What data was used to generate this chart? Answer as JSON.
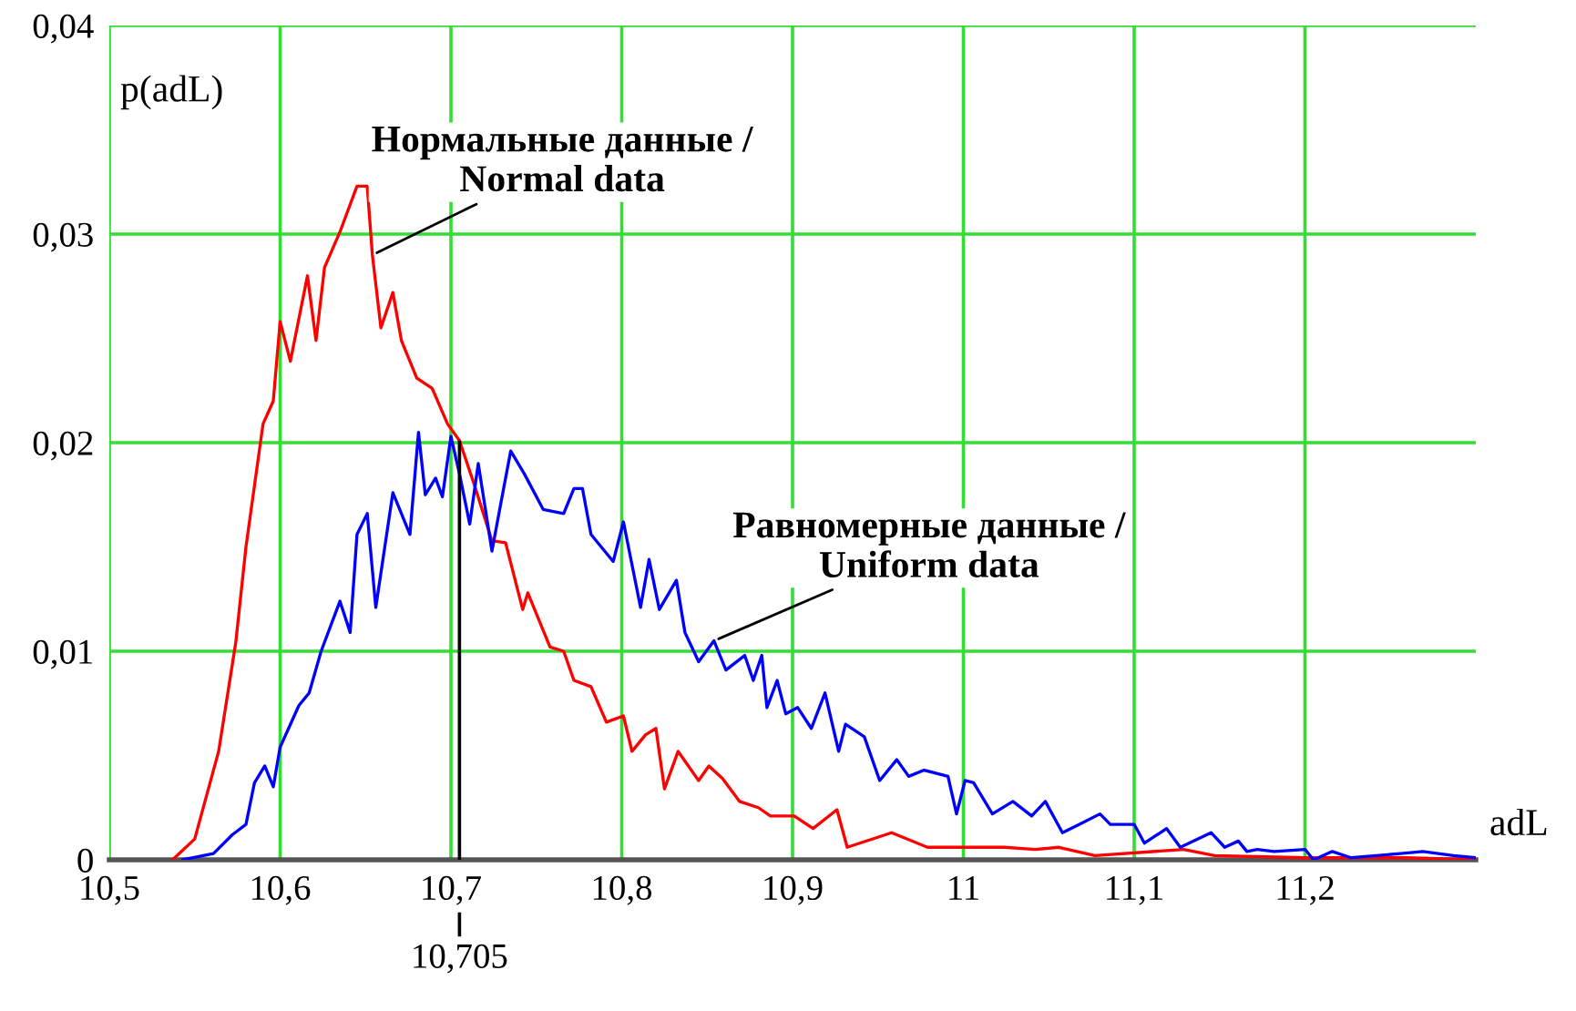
{
  "chart_data": {
    "type": "line",
    "xlabel": "adL",
    "ylabel": "p(adL)",
    "xlim": [
      10.5,
      11.3
    ],
    "ylim": [
      0,
      0.04
    ],
    "xticks": [
      {
        "value": 10.5,
        "label": "10,5"
      },
      {
        "value": 10.6,
        "label": "10,6"
      },
      {
        "value": 10.7,
        "label": "10,7"
      },
      {
        "value": 10.8,
        "label": "10,8"
      },
      {
        "value": 10.9,
        "label": "10,9"
      },
      {
        "value": 11,
        "label": "11"
      },
      {
        "value": 11.1,
        "label": "11,1"
      },
      {
        "value": 11.2,
        "label": "11,2"
      }
    ],
    "yticks": [
      0,
      {
        "value": 0.01,
        "label": "0,01"
      },
      {
        "value": 0.02,
        "label": "0,02"
      },
      {
        "value": 0.03,
        "label": "0,03"
      },
      {
        "value": 0.04,
        "label": "0,04"
      }
    ],
    "grid": true,
    "legend": false,
    "marker": "none",
    "line_style": "solid",
    "ref_lines": [
      {
        "axis": "x",
        "value": 10.705,
        "label": "10,705",
        "color": "#000000"
      }
    ],
    "annotations": [
      {
        "text": "Нормальные данные /\nNormal data",
        "x": 10.654,
        "y": 0.029
      },
      {
        "text": "Равномерные данные /\nUniform data",
        "x": 10.854,
        "y": 0.0105
      }
    ],
    "series": [
      {
        "color": "#ff0000",
        "x": [
          10.537,
          10.55,
          10.564,
          10.574,
          10.58,
          10.59,
          10.596,
          10.6,
          10.606,
          10.616,
          10.621,
          10.626,
          10.635,
          10.645,
          10.651,
          10.654,
          10.659,
          10.666,
          10.671,
          10.68,
          10.689,
          10.698,
          10.705,
          10.714,
          10.724,
          10.732,
          10.742,
          10.745,
          10.758,
          10.766,
          10.772,
          10.782,
          10.791,
          10.801,
          10.806,
          10.814,
          10.82,
          10.825,
          10.833,
          10.845,
          10.851,
          10.859,
          10.869,
          10.88,
          10.887,
          10.901,
          10.912,
          10.926,
          10.932,
          10.958,
          10.979,
          11.024,
          11.042,
          11.056,
          11.077,
          11.129,
          11.147,
          11.2,
          11.259,
          11.3
        ],
        "values": [
          0,
          0.001,
          0.0052,
          0.0104,
          0.015,
          0.0209,
          0.022,
          0.0258,
          0.0239,
          0.028,
          0.0249,
          0.0284,
          0.0301,
          0.0323,
          0.0323,
          0.029,
          0.0255,
          0.0272,
          0.0249,
          0.0231,
          0.0226,
          0.0209,
          0.0201,
          0.0179,
          0.0153,
          0.0152,
          0.012,
          0.0128,
          0.0102,
          0.01,
          0.0086,
          0.0083,
          0.0066,
          0.0069,
          0.0052,
          0.006,
          0.0063,
          0.0034,
          0.0052,
          0.0038,
          0.0045,
          0.0039,
          0.0028,
          0.0025,
          0.0021,
          0.0021,
          0.0015,
          0.0024,
          0.0006,
          0.0013,
          0.0006,
          0.0006,
          0.0005,
          0.0006,
          0.0002,
          0.0005,
          0.0002,
          0.0001,
          0.0001,
          0
        ]
      },
      {
        "color": "#0000ff",
        "x": [
          10.543,
          10.561,
          10.572,
          10.58,
          10.585,
          10.591,
          10.596,
          10.6,
          10.611,
          10.617,
          10.624,
          10.635,
          10.641,
          10.645,
          10.651,
          10.656,
          10.666,
          10.676,
          10.681,
          10.685,
          10.691,
          10.695,
          10.7,
          10.705,
          10.711,
          10.716,
          10.724,
          10.729,
          10.735,
          10.743,
          10.754,
          10.766,
          10.772,
          10.777,
          10.782,
          10.795,
          10.801,
          10.811,
          10.816,
          10.822,
          10.832,
          10.837,
          10.845,
          10.854,
          10.861,
          10.872,
          10.877,
          10.882,
          10.885,
          10.891,
          10.896,
          10.903,
          10.911,
          10.919,
          10.927,
          10.931,
          10.942,
          10.951,
          10.961,
          10.968,
          10.977,
          10.991,
          10.996,
          11.001,
          11.006,
          11.017,
          11.029,
          11.04,
          11.048,
          11.058,
          11.068,
          11.08,
          11.086,
          11.1,
          11.106,
          11.119,
          11.127,
          11.145,
          11.153,
          11.161,
          11.166,
          11.172,
          11.182,
          11.2,
          11.205,
          11.216,
          11.227,
          11.256,
          11.269,
          11.287,
          11.3
        ],
        "values": [
          0,
          0.0003,
          0.0012,
          0.0017,
          0.0037,
          0.0045,
          0.0035,
          0.0054,
          0.0074,
          0.008,
          0.01,
          0.0124,
          0.0109,
          0.0156,
          0.0166,
          0.0121,
          0.0176,
          0.0156,
          0.0205,
          0.0175,
          0.0183,
          0.0174,
          0.0203,
          0.0185,
          0.0161,
          0.019,
          0.0148,
          0.017,
          0.0196,
          0.0185,
          0.0168,
          0.0166,
          0.0178,
          0.0178,
          0.0156,
          0.0143,
          0.0162,
          0.0121,
          0.0144,
          0.012,
          0.0134,
          0.0109,
          0.0095,
          0.0105,
          0.0091,
          0.0098,
          0.0086,
          0.0098,
          0.0073,
          0.0086,
          0.007,
          0.0073,
          0.0063,
          0.008,
          0.0052,
          0.0065,
          0.0059,
          0.0038,
          0.0048,
          0.004,
          0.0043,
          0.004,
          0.0022,
          0.0038,
          0.0037,
          0.0022,
          0.0028,
          0.0021,
          0.0028,
          0.0013,
          0.0017,
          0.0022,
          0.0017,
          0.0017,
          0.0008,
          0.0015,
          0.0006,
          0.0013,
          0.0006,
          0.0009,
          0.0004,
          0.0005,
          0.0004,
          0.0005,
          0,
          0.0004,
          0.0001,
          0.0003,
          0.0004,
          0.0002,
          0.0001
        ]
      }
    ]
  }
}
